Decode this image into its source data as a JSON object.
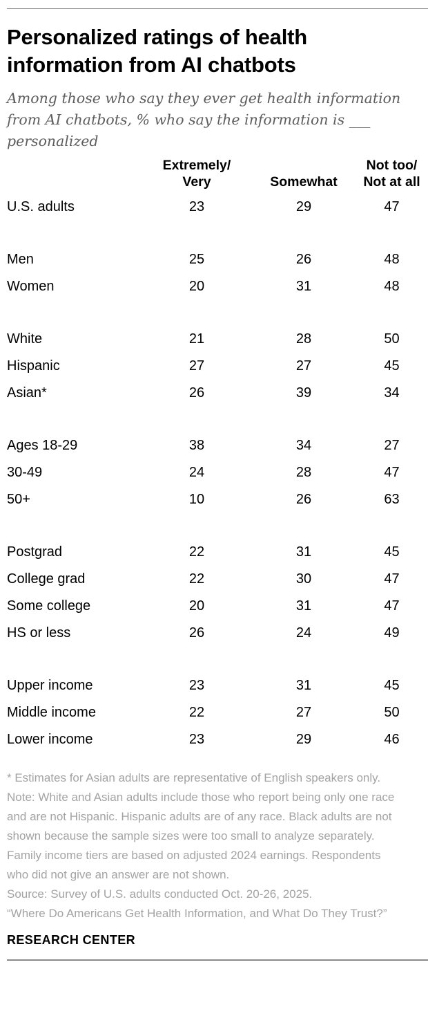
{
  "chart_data": {
    "type": "table",
    "title": "Personalized ratings of health information from AI chatbots",
    "subtitle": "Among those who say they ever get health information from AI chatbots, % who say the information is ___ personalized",
    "unit": "%",
    "columns": [
      {
        "label": "Extremely/Very",
        "lines": [
          "Extremely/",
          "Very"
        ]
      },
      {
        "label": "Somewhat",
        "lines": [
          "Somewhat"
        ]
      },
      {
        "label": "Not too/Not at all",
        "lines": [
          "Not too/",
          "Not at all"
        ]
      }
    ],
    "groups": [
      {
        "name": "overall",
        "rows": [
          {
            "label": "U.S. adults",
            "values": [
              23,
              29,
              47
            ]
          }
        ]
      },
      {
        "name": "gender",
        "rows": [
          {
            "label": "Men",
            "values": [
              25,
              26,
              48
            ]
          },
          {
            "label": "Women",
            "values": [
              20,
              31,
              48
            ]
          }
        ]
      },
      {
        "name": "race-ethnicity",
        "rows": [
          {
            "label": "White",
            "values": [
              21,
              28,
              50
            ]
          },
          {
            "label": "Hispanic",
            "values": [
              27,
              27,
              45
            ]
          },
          {
            "label": "Asian*",
            "values": [
              26,
              39,
              34
            ]
          }
        ]
      },
      {
        "name": "age",
        "rows": [
          {
            "label": "Ages 18-29",
            "values": [
              38,
              34,
              27
            ]
          },
          {
            "label": "30-49",
            "values": [
              24,
              28,
              47
            ]
          },
          {
            "label": "50+",
            "values": [
              10,
              26,
              63
            ]
          }
        ]
      },
      {
        "name": "education",
        "rows": [
          {
            "label": "Postgrad",
            "values": [
              22,
              31,
              45
            ]
          },
          {
            "label": "College grad",
            "values": [
              22,
              30,
              47
            ]
          },
          {
            "label": "Some college",
            "values": [
              20,
              31,
              47
            ]
          },
          {
            "label": "HS or less",
            "values": [
              26,
              24,
              49
            ]
          }
        ]
      },
      {
        "name": "income",
        "rows": [
          {
            "label": "Upper income",
            "values": [
              23,
              31,
              45
            ]
          },
          {
            "label": "Middle income",
            "values": [
              22,
              27,
              50
            ]
          },
          {
            "label": "Lower income",
            "values": [
              23,
              29,
              46
            ]
          }
        ]
      }
    ],
    "notes": {
      "footnote": "* Estimates for Asian adults are representative of English speakers only.",
      "note": "Note: White and Asian adults include those who report being only one race and are not Hispanic. Hispanic adults are of any race. Black adults are not shown because the sample sizes were too small to analyze separately. Family income tiers are based on adjusted 2024 earnings. Respondents who did not give an answer are not shown.",
      "source": "Source: Survey of U.S. adults conducted Oct. 20-26, 2025.",
      "report": "“Where Do Americans Get Health Information, and What Do They Trust?”"
    },
    "branding": "RESEARCH CENTER",
    "colors": {
      "title_text": "#000000",
      "subtitle_text": "#5d5d5d",
      "notes_text": "#a3a3a3",
      "rule": "#8f8f8f"
    }
  }
}
